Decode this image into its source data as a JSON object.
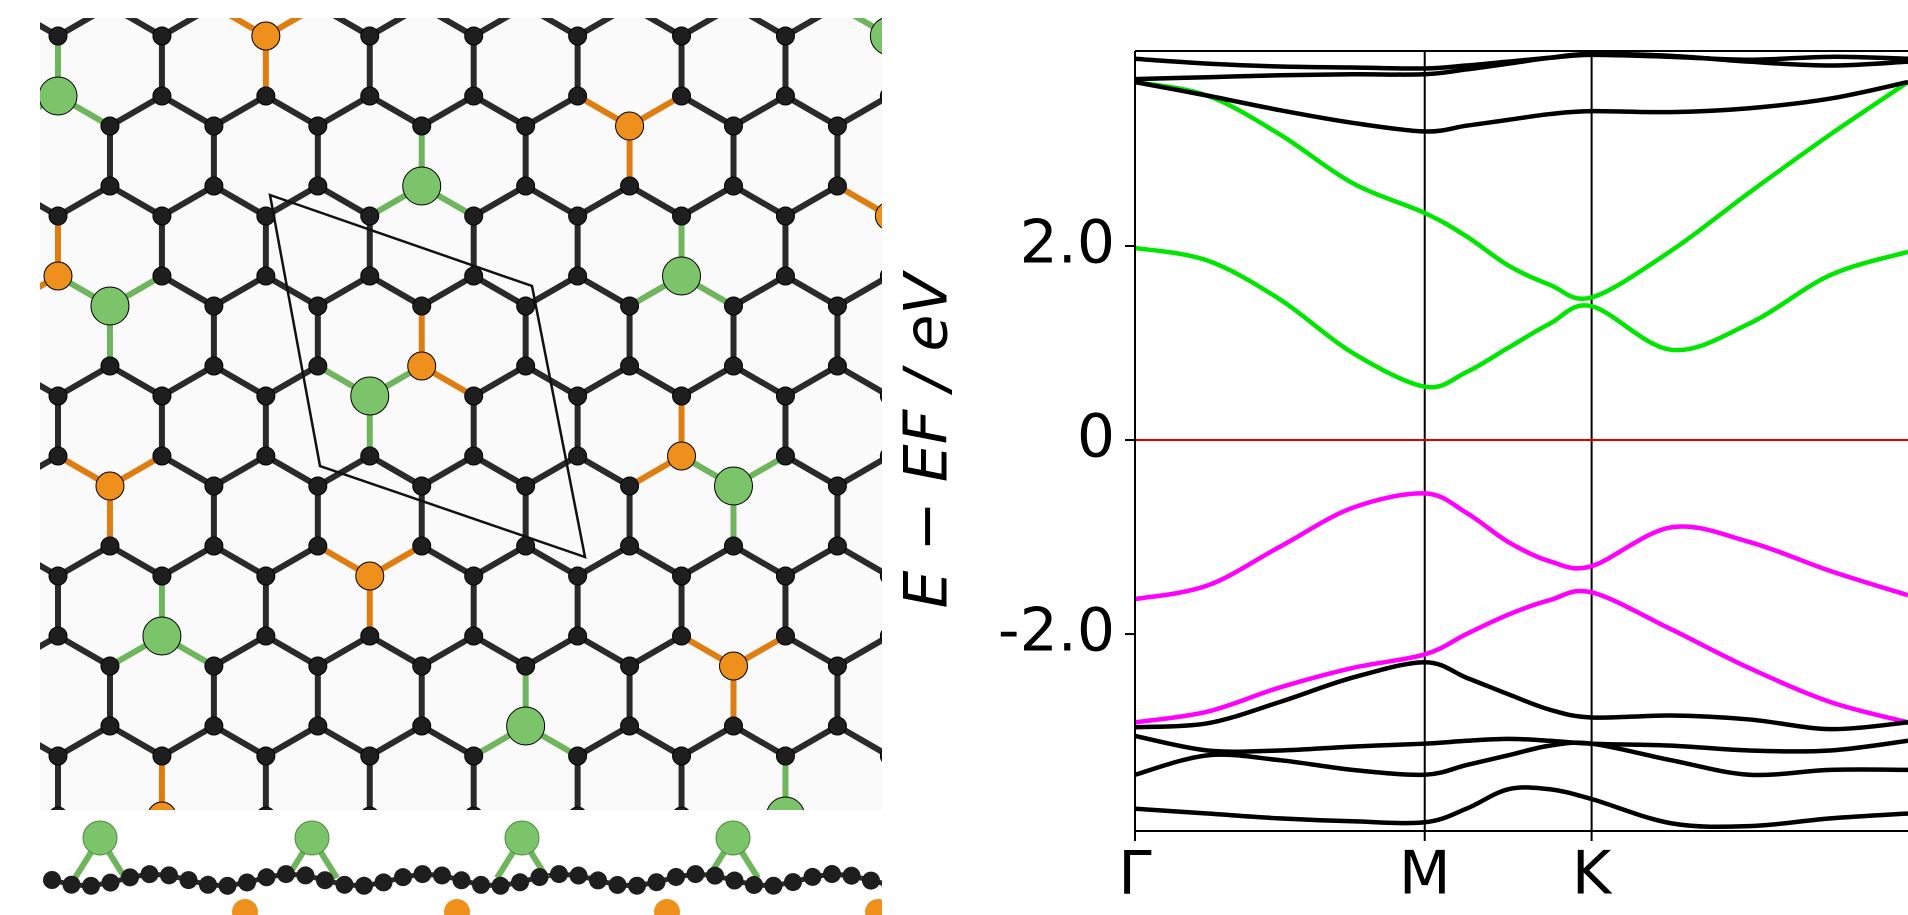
{
  "chart_data": {
    "type": "line",
    "ylabel": "E − EF / eV",
    "x": [
      0,
      0.25,
      0.5,
      0.75,
      1.0,
      1.144,
      1.288,
      1.432,
      1.576,
      1.85,
      2.12,
      2.4,
      2.668
    ],
    "xlim": [
      0,
      2.668
    ],
    "ylim": [
      -4.03,
      4.01
    ],
    "xticks": [
      {
        "value": 0,
        "label": "Γ"
      },
      {
        "value": 1.0,
        "label": "M"
      },
      {
        "value": 1.576,
        "label": "K"
      }
    ],
    "yticks": [
      {
        "value": -2,
        "label": "-2.0"
      },
      0,
      {
        "value": 2,
        "label": "2.0"
      }
    ],
    "grid": true,
    "hline": {
      "value": 0,
      "color": "#e00000"
    },
    "series": [
      {
        "color": "#00e600",
        "values": [
          3.69,
          3.55,
          3.15,
          2.65,
          2.34,
          2.1,
          1.8,
          1.6,
          1.47,
          1.95,
          2.55,
          3.15,
          3.69
        ]
      },
      {
        "color": "#00e600",
        "values": [
          1.98,
          1.85,
          1.45,
          0.9,
          0.55,
          0.7,
          0.95,
          1.2,
          1.38,
          0.93,
          1.2,
          1.7,
          1.94
        ]
      },
      {
        "color": "#ff00ff",
        "values": [
          -1.64,
          -1.5,
          -1.1,
          -0.7,
          -0.55,
          -0.75,
          -1.05,
          -1.25,
          -1.3,
          -0.9,
          -1.05,
          -1.35,
          -1.6
        ]
      },
      {
        "color": "#ff00ff",
        "values": [
          -2.91,
          -2.8,
          -2.55,
          -2.35,
          -2.21,
          -2.0,
          -1.8,
          -1.65,
          -1.57,
          -1.95,
          -2.35,
          -2.7,
          -2.91
        ]
      },
      {
        "color": "#000000",
        "values": [
          3.93,
          3.88,
          3.85,
          3.84,
          3.83,
          3.86,
          3.9,
          3.94,
          3.97,
          3.95,
          3.92,
          3.95,
          3.93
        ]
      },
      {
        "color": "#000000",
        "values": [
          3.72,
          3.74,
          3.76,
          3.77,
          3.77,
          3.82,
          3.88,
          3.94,
          3.98,
          3.96,
          3.9,
          3.86,
          3.9
        ]
      },
      {
        "color": "#000000",
        "values": [
          3.69,
          3.55,
          3.4,
          3.27,
          3.18,
          3.24,
          3.3,
          3.36,
          3.39,
          3.38,
          3.42,
          3.52,
          3.69
        ]
      },
      {
        "color": "#000000",
        "values": [
          -2.96,
          -2.92,
          -2.7,
          -2.45,
          -2.29,
          -2.45,
          -2.62,
          -2.78,
          -2.86,
          -2.84,
          -2.88,
          -2.98,
          -2.91
        ]
      },
      {
        "color": "#000000",
        "values": [
          -3.05,
          -3.2,
          -3.2,
          -3.16,
          -3.13,
          -3.1,
          -3.08,
          -3.1,
          -3.13,
          -3.15,
          -3.2,
          -3.2,
          -3.1
        ]
      },
      {
        "color": "#000000",
        "values": [
          -3.45,
          -3.25,
          -3.3,
          -3.4,
          -3.45,
          -3.35,
          -3.25,
          -3.15,
          -3.13,
          -3.3,
          -3.45,
          -3.4,
          -3.4
        ]
      },
      {
        "color": "#000000",
        "values": [
          -3.8,
          -3.85,
          -3.9,
          -3.93,
          -3.94,
          -3.8,
          -3.6,
          -3.6,
          -3.7,
          -3.95,
          -3.98,
          -3.9,
          -3.85
        ]
      }
    ]
  }
}
